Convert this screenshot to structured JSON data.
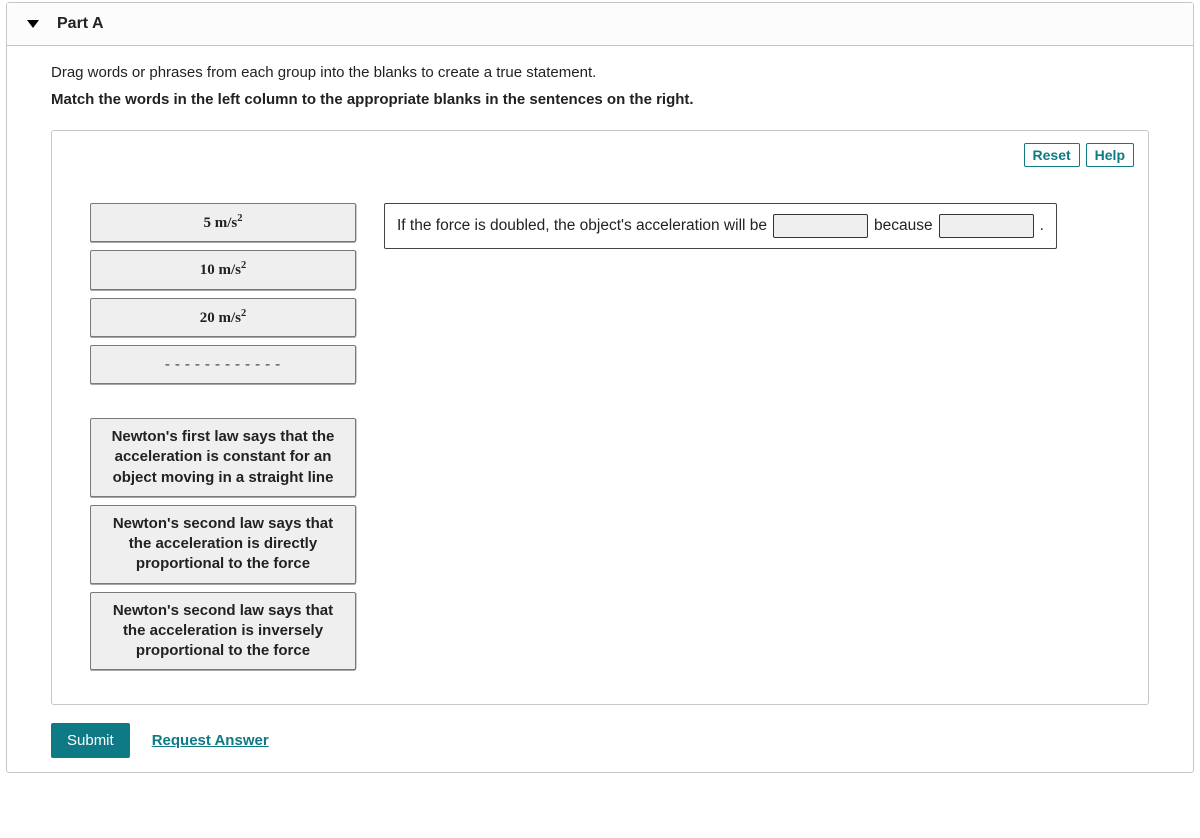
{
  "header": {
    "part_label": "Part A"
  },
  "instructions": {
    "line1": "Drag words or phrases from each group into the blanks to create a true statement.",
    "line2": "Match the words in the left column to the appropriate blanks in the sentences on the right."
  },
  "tools": {
    "reset": "Reset",
    "help": "Help"
  },
  "chips": {
    "c1": {
      "value": "5",
      "unit_html": "m/s",
      "exp": "2"
    },
    "c2": {
      "value": "10",
      "unit_html": "m/s",
      "exp": "2"
    },
    "c3": {
      "value": "20",
      "unit_html": "m/s",
      "exp": "2"
    },
    "c4_dashes": "------------",
    "c5": "Newton's first law says that the acceleration is constant for an object moving in a straight line",
    "c6": "Newton's second law says that the acceleration is directly proportional to the force",
    "c7": "Newton's second law says that the acceleration is inversely proportional to the force"
  },
  "sentence": {
    "seg1": "If the force is doubled, the object's acceleration will be",
    "seg2": "because",
    "seg3": "."
  },
  "footer": {
    "submit": "Submit",
    "request": "Request Answer"
  }
}
